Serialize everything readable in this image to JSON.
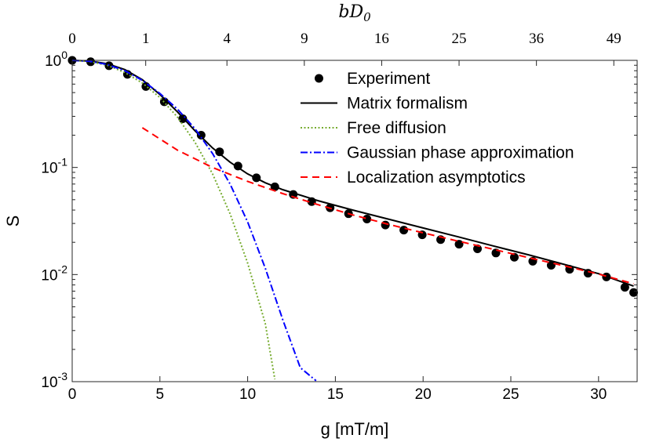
{
  "chart_data": {
    "type": "line",
    "yscale": "log",
    "xlabel": "g [mT/m]",
    "ylabel": "S",
    "top_xlabel": "bD0",
    "top_xlabel_parts": {
      "base": "bD",
      "sub": "0"
    },
    "xlim": [
      0,
      32.2
    ],
    "ylim": [
      0.001,
      1.0
    ],
    "x_ticks": [
      0,
      5,
      10,
      15,
      20,
      25,
      30
    ],
    "x_tick_labels": [
      "0",
      "5",
      "10",
      "15",
      "20",
      "25",
      "30"
    ],
    "y_ticks": [
      0.001,
      0.01,
      0.1,
      1
    ],
    "y_tick_labels": [
      {
        "base": "10",
        "exp": "-3"
      },
      {
        "base": "10",
        "exp": "-2"
      },
      {
        "base": "10",
        "exp": "-1"
      },
      {
        "base": "10",
        "exp": "0"
      }
    ],
    "top_ticks": [
      {
        "label": "0",
        "g": 0
      },
      {
        "label": "1",
        "g": 4.19
      },
      {
        "label": "4",
        "g": 8.82
      },
      {
        "label": "9",
        "g": 13.23
      },
      {
        "label": "16",
        "g": 17.64
      },
      {
        "label": "25",
        "g": 22.05
      },
      {
        "label": "36",
        "g": 26.46
      },
      {
        "label": "49",
        "g": 30.87
      }
    ],
    "legend_position": "top-right",
    "series": [
      {
        "name": "Experiment",
        "style": "markers",
        "color": "#000000",
        "x": [
          0,
          1.05,
          2.1,
          3.15,
          4.2,
          5.25,
          6.3,
          7.35,
          8.4,
          9.45,
          10.5,
          11.55,
          12.6,
          13.65,
          14.7,
          15.75,
          16.8,
          17.85,
          18.9,
          19.95,
          21.0,
          22.05,
          23.1,
          24.15,
          25.2,
          26.25,
          27.3,
          28.35,
          29.4,
          30.45,
          31.5,
          32.0
        ],
        "values": [
          1.0,
          0.97,
          0.89,
          0.74,
          0.57,
          0.41,
          0.285,
          0.2,
          0.14,
          0.103,
          0.08,
          0.066,
          0.056,
          0.048,
          0.042,
          0.037,
          0.033,
          0.029,
          0.026,
          0.0235,
          0.0212,
          0.0192,
          0.0174,
          0.0159,
          0.0145,
          0.0133,
          0.0122,
          0.0112,
          0.0103,
          0.0095,
          0.0076,
          0.0068
        ]
      },
      {
        "name": "Matrix formalism",
        "style": "solid",
        "color": "#000000",
        "x": [
          0,
          1,
          2,
          3,
          4,
          5,
          6,
          7,
          8,
          9,
          10,
          11,
          12,
          14,
          16,
          18,
          20,
          22,
          24,
          26,
          28,
          30,
          32
        ],
        "values": [
          1.0,
          0.985,
          0.93,
          0.82,
          0.66,
          0.48,
          0.33,
          0.22,
          0.152,
          0.112,
          0.087,
          0.072,
          0.062,
          0.049,
          0.04,
          0.033,
          0.0272,
          0.0225,
          0.0185,
          0.0153,
          0.0125,
          0.0102,
          0.0078
        ]
      },
      {
        "name": "Free diffusion",
        "style": "dotted",
        "color": "#77AC30",
        "x": [
          0,
          1,
          2,
          3,
          4,
          5,
          6,
          7,
          8,
          9,
          10,
          11,
          11.55
        ],
        "values": [
          1.0,
          0.975,
          0.9,
          0.77,
          0.615,
          0.45,
          0.295,
          0.172,
          0.087,
          0.037,
          0.0128,
          0.0035,
          0.00105
        ]
      },
      {
        "name": "Gaussian phase approximation",
        "style": "dashdot",
        "color": "#0000FF",
        "x": [
          0,
          1,
          2,
          3,
          4,
          5,
          6,
          7,
          8,
          9,
          10,
          11,
          12,
          13,
          13.9
        ],
        "values": [
          1.0,
          0.98,
          0.915,
          0.8,
          0.65,
          0.49,
          0.35,
          0.23,
          0.135,
          0.07,
          0.031,
          0.0115,
          0.0038,
          0.00135,
          0.00102
        ]
      },
      {
        "name": "Localization asymptotics",
        "style": "dashed",
        "color": "#FF0000",
        "x": [
          4,
          6,
          8,
          10,
          12,
          14,
          16,
          18,
          20,
          22,
          24,
          26,
          28,
          30,
          32
        ],
        "values": [
          0.235,
          0.145,
          0.1,
          0.074,
          0.057,
          0.045,
          0.036,
          0.0295,
          0.0245,
          0.0205,
          0.0172,
          0.0144,
          0.0121,
          0.0101,
          0.0082
        ]
      }
    ]
  }
}
